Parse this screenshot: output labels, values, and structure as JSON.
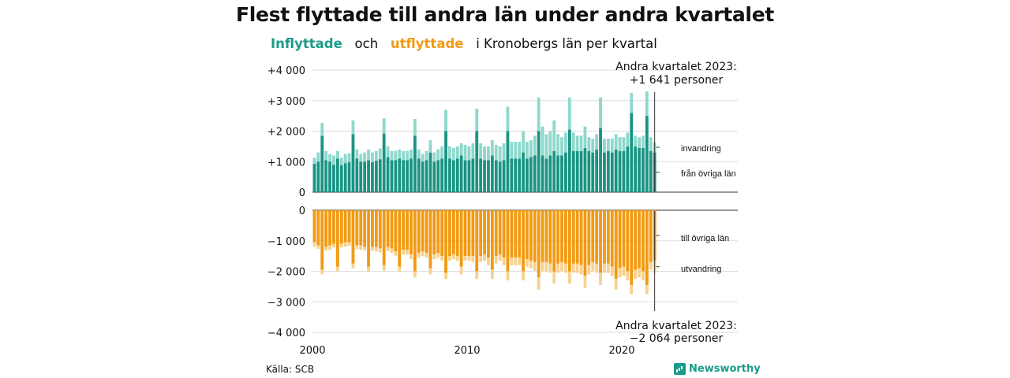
{
  "title": "Flest flyttade till andra län under andra kvartalet",
  "subtitle": {
    "in_word": "Inflyttade",
    "and_word": "och",
    "out_word": "utflyttade",
    "rest": "i Kronobergs län per kvartal"
  },
  "source": "Källa: SCB",
  "brand": "Newsworthy",
  "colors": {
    "in_dark": "#1a9484",
    "in_light": "#8fd8cc",
    "out_dark": "#f29a12",
    "out_light": "#f7d28f",
    "text_in": "#1a9b8a",
    "text_out": "#f29a12"
  },
  "chart_data": {
    "type": "bar",
    "stacked": true,
    "x_start_year": 2000,
    "x_start_quarter": 1,
    "x_ticks": [
      "2000",
      "2010",
      "2020"
    ],
    "y_ticks_top": [
      "+4 000",
      "+3 000",
      "+2 000",
      "+1 000",
      "0"
    ],
    "y_ticks_bottom": [
      "0",
      "−1 000",
      "−2 000",
      "−3 000",
      "−4 000"
    ],
    "ylim_top": [
      0,
      4000
    ],
    "ylim_bottom": [
      -4000,
      0
    ],
    "series_labels": {
      "in_emigration": "invandring",
      "in_domestic": "från övriga län",
      "out_domestic": "till övriga län",
      "out_emigration": "utvandring"
    },
    "annotation_top": {
      "line1": "Andra kvartalet 2023:",
      "line2": "+1 641 personer"
    },
    "annotation_bottom": {
      "line1": "Andra kvartalet 2023:",
      "line2": "−2 064 personer"
    },
    "inflow_domestic": [
      930,
      1000,
      1850,
      1050,
      1000,
      900,
      1100,
      880,
      950,
      980,
      1900,
      1100,
      1000,
      1000,
      1050,
      980,
      1030,
      1080,
      1920,
      1150,
      1050,
      1050,
      1100,
      1050,
      1050,
      1100,
      1850,
      1100,
      1000,
      1050,
      1300,
      1000,
      1050,
      1100,
      2000,
      1100,
      1050,
      1100,
      1200,
      1050,
      1050,
      1100,
      2000,
      1100,
      1050,
      1050,
      1200,
      1050,
      1000,
      1050,
      2000,
      1100,
      1100,
      1100,
      1300,
      1100,
      1150,
      1200,
      2000,
      1200,
      1100,
      1200,
      1350,
      1200,
      1200,
      1300,
      2050,
      1350,
      1350,
      1350,
      1450,
      1350,
      1300,
      1400,
      2100,
      1300,
      1350,
      1300,
      1400,
      1350,
      1350,
      1500,
      2600,
      1500,
      1450,
      1450,
      2500,
      1350,
      1300
    ],
    "inflow_emigration": [
      200,
      300,
      420,
      300,
      250,
      300,
      250,
      250,
      300,
      300,
      450,
      300,
      250,
      300,
      350,
      320,
      320,
      350,
      500,
      350,
      300,
      300,
      300,
      300,
      300,
      300,
      550,
      300,
      250,
      300,
      400,
      300,
      350,
      400,
      700,
      400,
      400,
      400,
      400,
      500,
      450,
      500,
      730,
      500,
      450,
      450,
      500,
      500,
      500,
      550,
      800,
      550,
      550,
      550,
      700,
      550,
      550,
      650,
      1100,
      950,
      800,
      800,
      1000,
      700,
      600,
      650,
      1050,
      600,
      500,
      500,
      700,
      450,
      450,
      500,
      1000,
      450,
      400,
      450,
      500,
      450,
      450,
      450,
      650,
      350,
      350,
      400,
      800,
      450,
      340
    ],
    "outflow_domestic": [
      1050,
      1150,
      1950,
      1200,
      1150,
      1100,
      1850,
      1100,
      1050,
      1050,
      1750,
      1150,
      1150,
      1200,
      1850,
      1200,
      1200,
      1250,
      1800,
      1200,
      1250,
      1350,
      1850,
      1300,
      1300,
      1450,
      2000,
      1400,
      1350,
      1400,
      1900,
      1450,
      1400,
      1500,
      2050,
      1500,
      1450,
      1500,
      1850,
      1500,
      1500,
      1500,
      2000,
      1500,
      1450,
      1550,
      1950,
      1500,
      1450,
      1550,
      2000,
      1550,
      1550,
      1550,
      2000,
      1600,
      1650,
      1700,
      2200,
      1700,
      1700,
      1750,
      2000,
      1750,
      1700,
      1750,
      2000,
      1750,
      1750,
      1800,
      2150,
      1800,
      1700,
      1750,
      2050,
      1750,
      1750,
      1850,
      2250,
      1900,
      1850,
      2000,
      2450,
      1950,
      1900,
      2000,
      2450,
      1700,
      1650
    ],
    "outflow_emigration": [
      150,
      120,
      150,
      120,
      150,
      120,
      150,
      120,
      150,
      120,
      150,
      120,
      150,
      120,
      180,
      120,
      150,
      130,
      180,
      140,
      150,
      140,
      180,
      150,
      150,
      150,
      200,
      150,
      150,
      150,
      200,
      150,
      150,
      150,
      200,
      150,
      150,
      160,
      250,
      150,
      150,
      200,
      250,
      200,
      200,
      250,
      300,
      250,
      200,
      250,
      300,
      250,
      250,
      250,
      300,
      250,
      250,
      280,
      400,
      300,
      300,
      300,
      400,
      300,
      300,
      300,
      400,
      300,
      300,
      300,
      400,
      300,
      300,
      300,
      400,
      300,
      300,
      300,
      350,
      300,
      300,
      300,
      300,
      300,
      300,
      300,
      300,
      250,
      400
    ]
  }
}
